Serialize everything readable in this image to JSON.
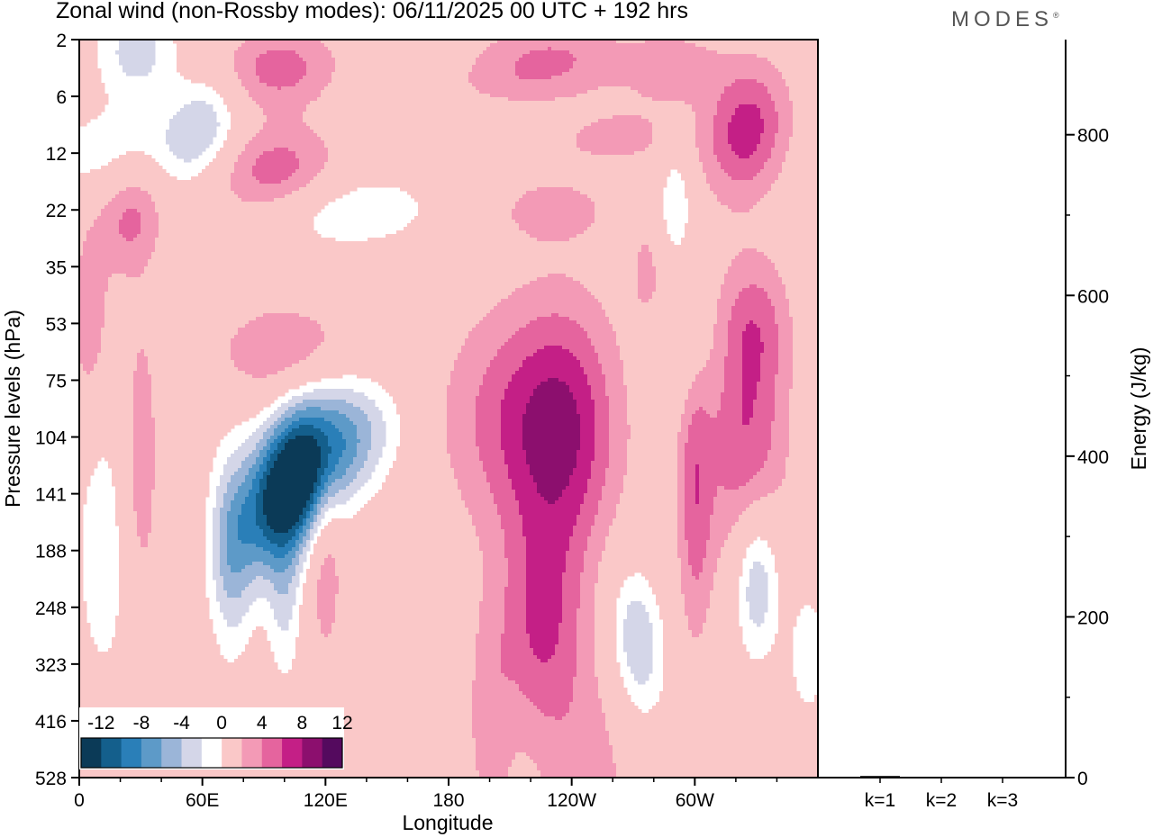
{
  "title": "Zonal wind (non-Rossby modes):  06/11/2025  00 UTC  + 192 hrs",
  "brand": {
    "name": "MODES",
    "mark": "®"
  },
  "chart_data": [
    {
      "type": "heatmap",
      "title": "Zonal wind (non-Rossby modes)",
      "xlabel": "Longitude",
      "ylabel": "Pressure levels (hPa)",
      "x_ticks": [
        {
          "deg": 0,
          "label": "0"
        },
        {
          "deg": 60,
          "label": "60E"
        },
        {
          "deg": 120,
          "label": "120E"
        },
        {
          "deg": 180,
          "label": "180"
        },
        {
          "deg": 240,
          "label": "120W"
        },
        {
          "deg": 300,
          "label": "60W"
        }
      ],
      "xlim": [
        0,
        360
      ],
      "y_ticks": [
        "2",
        "6",
        "12",
        "22",
        "35",
        "53",
        "75",
        "104",
        "141",
        "188",
        "248",
        "323",
        "416",
        "528"
      ],
      "colorbar": {
        "labels": [
          "-12",
          "-8",
          "-4",
          "0",
          "4",
          "8",
          "12"
        ],
        "levels": [
          -14,
          -12,
          -10,
          -8,
          -6,
          -4,
          -2,
          2,
          4,
          6,
          8,
          10,
          12
        ],
        "colors": [
          "#0b3a57",
          "#145f8c",
          "#2a7fb8",
          "#5d9ac8",
          "#9bb5d8",
          "#d4d6e8",
          "#ffffff",
          "#fac8c8",
          "#f39ab6",
          "#e5649e",
          "#c41f86",
          "#8c0f6e",
          "#540a5e"
        ]
      },
      "blobs": [
        {
          "lon": 100,
          "lev": 8.0,
          "sx": 14,
          "sy": 0.95,
          "tilt": -0.55,
          "v": -14
        },
        {
          "lon": 115,
          "lev": 7.3,
          "sx": 16,
          "sy": 0.9,
          "tilt": -0.45,
          "v": -8
        },
        {
          "lon": 74,
          "lev": 9.0,
          "sx": 8,
          "sy": 1.3,
          "tilt": 0.0,
          "v": -6
        },
        {
          "lon": 140,
          "lev": 7.0,
          "sx": 14,
          "sy": 0.7,
          "tilt": -0.3,
          "v": -4
        },
        {
          "lon": 100,
          "lev": 10.0,
          "sx": 6,
          "sy": 1.0,
          "tilt": 0.0,
          "v": -4
        },
        {
          "lon": 25,
          "lev": 2.0,
          "sx": 28,
          "sy": 0.6,
          "tilt": -0.2,
          "v": -4
        },
        {
          "lon": 28,
          "lev": 0.2,
          "sx": 14,
          "sy": 0.6,
          "tilt": 0.0,
          "v": -5
        },
        {
          "lon": 60,
          "lev": 1.5,
          "sx": 12,
          "sy": 0.6,
          "tilt": -0.4,
          "v": -5
        },
        {
          "lon": 125,
          "lev": 3.0,
          "sx": 35,
          "sy": 0.5,
          "tilt": -0.25,
          "v": -4
        },
        {
          "lon": 220,
          "lev": 1.4,
          "sx": 40,
          "sy": 0.35,
          "tilt": 0.0,
          "v": -3
        },
        {
          "lon": 290,
          "lev": 3.0,
          "sx": 6,
          "sy": 0.7,
          "tilt": 0.0,
          "v": -5
        },
        {
          "lon": 330,
          "lev": 9.5,
          "sx": 8,
          "sy": 1.0,
          "tilt": 0.0,
          "v": -7
        },
        {
          "lon": 272,
          "lev": 10.6,
          "sx": 9,
          "sy": 0.9,
          "tilt": 0.2,
          "v": -6
        },
        {
          "lon": 355,
          "lev": 10.8,
          "sx": 8,
          "sy": 1.0,
          "tilt": 0.0,
          "v": -3
        },
        {
          "lon": 12,
          "lev": 9.0,
          "sx": 12,
          "sy": 2.0,
          "tilt": 0.0,
          "v": -3
        },
        {
          "lon": 290,
          "lev": 5.5,
          "sx": 14,
          "sy": 0.8,
          "tilt": 0.0,
          "v": -3
        },
        {
          "lon": 210,
          "lev": 1.0,
          "sx": 25,
          "sy": 0.4,
          "tilt": 0.0,
          "v": 3
        },
        {
          "lon": 95,
          "lev": 2.4,
          "sx": 22,
          "sy": 0.6,
          "tilt": -0.35,
          "v": 6
        },
        {
          "lon": 25,
          "lev": 3.0,
          "sx": 12,
          "sy": 0.8,
          "tilt": -0.3,
          "v": 5
        },
        {
          "lon": 100,
          "lev": 5.5,
          "sx": 24,
          "sy": 0.6,
          "tilt": -0.2,
          "v": 4
        },
        {
          "lon": 97,
          "lev": 0.5,
          "sx": 20,
          "sy": 0.5,
          "tilt": -0.3,
          "v": 5
        },
        {
          "lon": 325,
          "lev": 1.6,
          "sx": 14,
          "sy": 0.8,
          "tilt": -0.3,
          "v": 7
        },
        {
          "lon": 255,
          "lev": 1.6,
          "sx": 25,
          "sy": 0.4,
          "tilt": -0.1,
          "v": 4
        },
        {
          "lon": 230,
          "lev": 0.3,
          "sx": 25,
          "sy": 0.4,
          "tilt": 0.0,
          "v": 4
        },
        {
          "lon": 212,
          "lev": 6.7,
          "sx": 25,
          "sy": 1.4,
          "tilt": 0.0,
          "v": 5
        },
        {
          "lon": 238,
          "lev": 6.9,
          "sx": 18,
          "sy": 1.6,
          "tilt": 0.0,
          "v": 6
        },
        {
          "lon": 225,
          "lev": 10.3,
          "sx": 14,
          "sy": 1.4,
          "tilt": 0.0,
          "v": 6
        },
        {
          "lon": 247,
          "lev": 14.0,
          "sx": 14,
          "sy": 2.0,
          "tilt": 0.0,
          "v": 4
        },
        {
          "lon": 200,
          "lev": 12.0,
          "sx": 8,
          "sy": 1.5,
          "tilt": 0.0,
          "v": 3
        },
        {
          "lon": 325,
          "lev": 7.0,
          "sx": 14,
          "sy": 1.8,
          "tilt": 0.0,
          "v": 6
        },
        {
          "lon": 300,
          "lev": 8.0,
          "sx": 6,
          "sy": 1.8,
          "tilt": 0.0,
          "v": 5
        },
        {
          "lon": 330,
          "lev": 5.0,
          "sx": 12,
          "sy": 0.8,
          "tilt": 0.0,
          "v": 3
        },
        {
          "lon": 280,
          "lev": 4.5,
          "sx": 10,
          "sy": 1.3,
          "tilt": 0.0,
          "v": 3
        },
        {
          "lon": 5,
          "lev": 5.0,
          "sx": 6,
          "sy": 1.0,
          "tilt": 0.0,
          "v": 4
        },
        {
          "lon": 30,
          "lev": 7.5,
          "sx": 6,
          "sy": 1.8,
          "tilt": 0.0,
          "v": 4
        },
        {
          "lon": 120,
          "lev": 9.0,
          "sx": 6,
          "sy": 1.3,
          "tilt": 0.0,
          "v": 4
        },
        {
          "lon": 230,
          "lev": 3.0,
          "sx": 20,
          "sy": 0.4,
          "tilt": 0.0,
          "v": 3
        },
        {
          "lon": 290,
          "lev": 0.5,
          "sx": 18,
          "sy": 0.5,
          "tilt": 0.0,
          "v": 3
        }
      ]
    },
    {
      "type": "bar",
      "title": "Energy",
      "categories": [
        "k=1",
        "k=2",
        "k=3"
      ],
      "values": [
        2,
        1,
        1
      ],
      "ylabel": "Energy (J/kg)",
      "ylim": [
        0,
        900
      ],
      "y_ticks": [
        0,
        200,
        400,
        600,
        800
      ]
    }
  ]
}
